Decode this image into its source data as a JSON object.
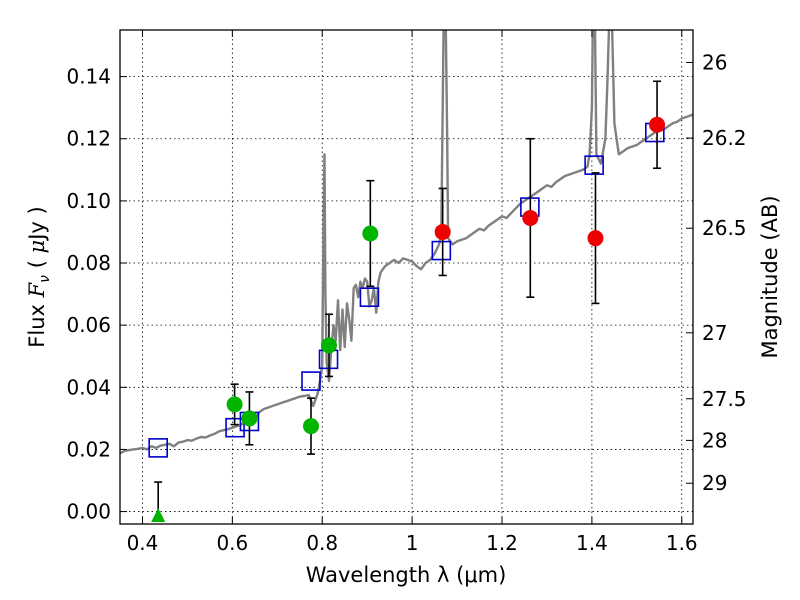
{
  "chart_data": {
    "type": "scatter",
    "xlabel": "Wavelength  λ (μm)",
    "ylabel": "Flux  F_ν  ( μJy )",
    "ylabel_parts": {
      "pre": "Flux ",
      "var": "F",
      "sub": "ν",
      "post": "  ( ",
      "mu": "μ",
      "unit": "Jy )"
    },
    "y2label": "Magnitude (AB)",
    "xlim": [
      0.35,
      1.625
    ],
    "ylim": [
      -0.004,
      0.155
    ],
    "grid": true,
    "x_ticks": [
      0.4,
      0.6,
      0.8,
      1.0,
      1.2,
      1.4,
      1.6
    ],
    "x_tick_labels": [
      "0.4",
      "0.6",
      "0.8",
      "1",
      "1.2",
      "1.4",
      "1.6"
    ],
    "y_ticks": [
      0.0,
      0.02,
      0.04,
      0.06,
      0.08,
      0.1,
      0.12,
      0.14
    ],
    "y_tick_labels": [
      "0.00",
      "0.02",
      "0.04",
      "0.06",
      "0.08",
      "0.10",
      "0.12",
      "0.14"
    ],
    "mag_ticks": [
      {
        "mag": 26,
        "label": "26"
      },
      {
        "mag": 26.2,
        "label": "26.2"
      },
      {
        "mag": 26.5,
        "label": "26.5"
      },
      {
        "mag": 27,
        "label": "27"
      },
      {
        "mag": 27.5,
        "label": "27.5"
      },
      {
        "mag": 28,
        "label": "28"
      },
      {
        "mag": 29,
        "label": "29"
      }
    ],
    "colors": {
      "model": "#808080",
      "model_bands": "#0000cc",
      "green": "#00b400",
      "red": "#ee0000",
      "errorbar": "#000000"
    },
    "model_spectrum": [
      [
        0.35,
        0.0188
      ],
      [
        0.36,
        0.0195
      ],
      [
        0.37,
        0.0198
      ],
      [
        0.38,
        0.02
      ],
      [
        0.39,
        0.0202
      ],
      [
        0.4,
        0.0205
      ],
      [
        0.41,
        0.02
      ],
      [
        0.42,
        0.021
      ],
      [
        0.43,
        0.0205
      ],
      [
        0.44,
        0.0212
      ],
      [
        0.45,
        0.0215
      ],
      [
        0.46,
        0.0218
      ],
      [
        0.47,
        0.021
      ],
      [
        0.48,
        0.0222
      ],
      [
        0.49,
        0.0225
      ],
      [
        0.5,
        0.023
      ],
      [
        0.51,
        0.0228
      ],
      [
        0.52,
        0.0235
      ],
      [
        0.53,
        0.024
      ],
      [
        0.54,
        0.0238
      ],
      [
        0.55,
        0.0245
      ],
      [
        0.56,
        0.025
      ],
      [
        0.57,
        0.0258
      ],
      [
        0.58,
        0.0262
      ],
      [
        0.59,
        0.0265
      ],
      [
        0.6,
        0.027
      ],
      [
        0.61,
        0.0275
      ],
      [
        0.62,
        0.028
      ],
      [
        0.63,
        0.029
      ],
      [
        0.64,
        0.0295
      ],
      [
        0.65,
        0.03
      ],
      [
        0.66,
        0.032
      ],
      [
        0.67,
        0.033
      ],
      [
        0.68,
        0.0335
      ],
      [
        0.69,
        0.034
      ],
      [
        0.7,
        0.0345
      ],
      [
        0.71,
        0.035
      ],
      [
        0.72,
        0.0355
      ],
      [
        0.73,
        0.036
      ],
      [
        0.74,
        0.0365
      ],
      [
        0.75,
        0.037
      ],
      [
        0.76,
        0.0372
      ],
      [
        0.77,
        0.0375
      ],
      [
        0.78,
        0.034
      ],
      [
        0.785,
        0.036
      ],
      [
        0.79,
        0.038
      ],
      [
        0.795,
        0.042
      ],
      [
        0.8,
        0.047
      ],
      [
        0.803,
        0.095
      ],
      [
        0.805,
        0.115
      ],
      [
        0.807,
        0.07
      ],
      [
        0.81,
        0.048
      ],
      [
        0.815,
        0.042
      ],
      [
        0.82,
        0.052
      ],
      [
        0.825,
        0.06
      ],
      [
        0.83,
        0.055
      ],
      [
        0.835,
        0.068
      ],
      [
        0.84,
        0.052
      ],
      [
        0.845,
        0.065
      ],
      [
        0.85,
        0.053
      ],
      [
        0.855,
        0.067
      ],
      [
        0.86,
        0.062
      ],
      [
        0.865,
        0.055
      ],
      [
        0.87,
        0.072
      ],
      [
        0.875,
        0.073
      ],
      [
        0.88,
        0.069
      ],
      [
        0.885,
        0.074
      ],
      [
        0.89,
        0.072
      ],
      [
        0.895,
        0.075
      ],
      [
        0.9,
        0.074
      ],
      [
        0.905,
        0.066
      ],
      [
        0.91,
        0.068
      ],
      [
        0.915,
        0.072
      ],
      [
        0.92,
        0.064
      ],
      [
        0.925,
        0.074
      ],
      [
        0.93,
        0.077
      ],
      [
        0.94,
        0.079
      ],
      [
        0.95,
        0.08
      ],
      [
        0.96,
        0.081
      ],
      [
        0.97,
        0.08
      ],
      [
        0.98,
        0.0815
      ],
      [
        0.99,
        0.081
      ],
      [
        1.0,
        0.0805
      ],
      [
        1.01,
        0.079
      ],
      [
        1.02,
        0.078
      ],
      [
        1.03,
        0.08
      ],
      [
        1.04,
        0.081
      ],
      [
        1.05,
        0.083
      ],
      [
        1.06,
        0.086
      ],
      [
        1.065,
        0.09
      ],
      [
        1.068,
        0.13
      ],
      [
        1.07,
        0.156
      ],
      [
        1.075,
        0.156
      ],
      [
        1.078,
        0.12
      ],
      [
        1.08,
        0.088
      ],
      [
        1.09,
        0.086
      ],
      [
        1.1,
        0.087
      ],
      [
        1.11,
        0.0875
      ],
      [
        1.12,
        0.088
      ],
      [
        1.13,
        0.089
      ],
      [
        1.14,
        0.09
      ],
      [
        1.15,
        0.091
      ],
      [
        1.16,
        0.0905
      ],
      [
        1.17,
        0.092
      ],
      [
        1.18,
        0.093
      ],
      [
        1.19,
        0.094
      ],
      [
        1.2,
        0.095
      ],
      [
        1.21,
        0.0945
      ],
      [
        1.22,
        0.096
      ],
      [
        1.23,
        0.0975
      ],
      [
        1.24,
        0.099
      ],
      [
        1.25,
        0.1
      ],
      [
        1.26,
        0.101
      ],
      [
        1.27,
        0.102
      ],
      [
        1.28,
        0.103
      ],
      [
        1.29,
        0.104
      ],
      [
        1.3,
        0.105
      ],
      [
        1.31,
        0.1045
      ],
      [
        1.32,
        0.106
      ],
      [
        1.33,
        0.107
      ],
      [
        1.34,
        0.108
      ],
      [
        1.35,
        0.1085
      ],
      [
        1.36,
        0.109
      ],
      [
        1.37,
        0.1095
      ],
      [
        1.38,
        0.11
      ],
      [
        1.39,
        0.111
      ],
      [
        1.395,
        0.115
      ],
      [
        1.4,
        0.13
      ],
      [
        1.402,
        0.156
      ],
      [
        1.407,
        0.156
      ],
      [
        1.41,
        0.115
      ],
      [
        1.42,
        0.112
      ],
      [
        1.43,
        0.12
      ],
      [
        1.435,
        0.14
      ],
      [
        1.438,
        0.156
      ],
      [
        1.445,
        0.156
      ],
      [
        1.45,
        0.125
      ],
      [
        1.46,
        0.115
      ],
      [
        1.47,
        0.116
      ],
      [
        1.48,
        0.117
      ],
      [
        1.49,
        0.1175
      ],
      [
        1.5,
        0.118
      ],
      [
        1.51,
        0.119
      ],
      [
        1.52,
        0.12
      ],
      [
        1.53,
        0.121
      ],
      [
        1.54,
        0.122
      ],
      [
        1.55,
        0.1225
      ],
      [
        1.56,
        0.123
      ],
      [
        1.57,
        0.124
      ],
      [
        1.58,
        0.125
      ],
      [
        1.59,
        0.1255
      ],
      [
        1.6,
        0.1265
      ],
      [
        1.61,
        0.127
      ],
      [
        1.62,
        0.1275
      ],
      [
        1.625,
        0.1278
      ]
    ],
    "model_bands": [
      {
        "x": 0.435,
        "y": 0.0205
      },
      {
        "x": 0.606,
        "y": 0.027
      },
      {
        "x": 0.638,
        "y": 0.029
      },
      {
        "x": 0.775,
        "y": 0.042
      },
      {
        "x": 0.814,
        "y": 0.049
      },
      {
        "x": 0.905,
        "y": 0.069
      },
      {
        "x": 1.065,
        "y": 0.084
      },
      {
        "x": 1.262,
        "y": 0.098
      },
      {
        "x": 1.405,
        "y": 0.1115
      },
      {
        "x": 1.54,
        "y": 0.122
      }
    ],
    "series": [
      {
        "marker": "circle",
        "color": "#00b400",
        "points": [
          {
            "x": 0.605,
            "y": 0.0345,
            "err": 0.0065
          },
          {
            "x": 0.638,
            "y": 0.03,
            "err": 0.0085
          },
          {
            "x": 0.775,
            "y": 0.0275,
            "err": 0.009
          },
          {
            "x": 0.815,
            "y": 0.0535,
            "err": 0.01
          },
          {
            "x": 0.907,
            "y": 0.0895,
            "err": 0.017
          }
        ]
      },
      {
        "marker": "circle",
        "color": "#ee0000",
        "points": [
          {
            "x": 1.068,
            "y": 0.09,
            "err": 0.014
          },
          {
            "x": 1.263,
            "y": 0.0945,
            "err": 0.0255
          },
          {
            "x": 1.408,
            "y": 0.088,
            "err": 0.021
          },
          {
            "x": 1.545,
            "y": 0.1245,
            "err": 0.014
          }
        ]
      },
      {
        "marker": "triangle",
        "color": "#00b400",
        "points": [
          {
            "x": 0.435,
            "y": -0.001,
            "err_up": 0.0105,
            "err_down": 0.0
          }
        ]
      }
    ]
  }
}
